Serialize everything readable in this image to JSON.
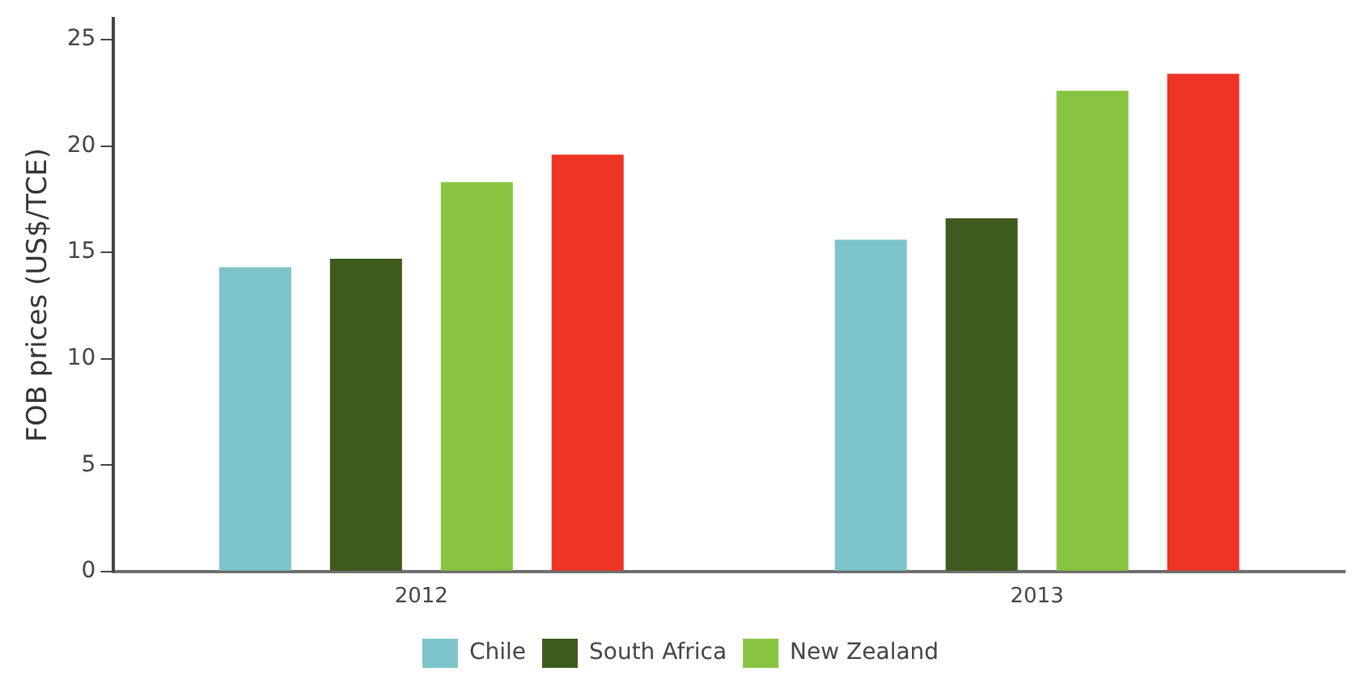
{
  "chart_data": {
    "type": "bar",
    "ylabel": "FOB prices (US$/TCE)",
    "categories": [
      "2012",
      "2013"
    ],
    "series": [
      {
        "name": "Chile",
        "color": "#7cc4ca",
        "values": [
          14.3,
          15.6
        ]
      },
      {
        "name": "South Africa",
        "color": "#3e5b1e",
        "values": [
          14.7,
          16.6
        ]
      },
      {
        "name": "New Zealand",
        "color": "#88c442",
        "values": [
          18.3,
          22.6
        ]
      },
      {
        "color": "#ee3424",
        "values": [
          19.6,
          23.4
        ]
      }
    ],
    "ylim": [
      0,
      26
    ],
    "yticks": [
      0,
      5,
      10,
      15,
      20,
      25
    ],
    "grid": false,
    "legend": "bottom"
  }
}
